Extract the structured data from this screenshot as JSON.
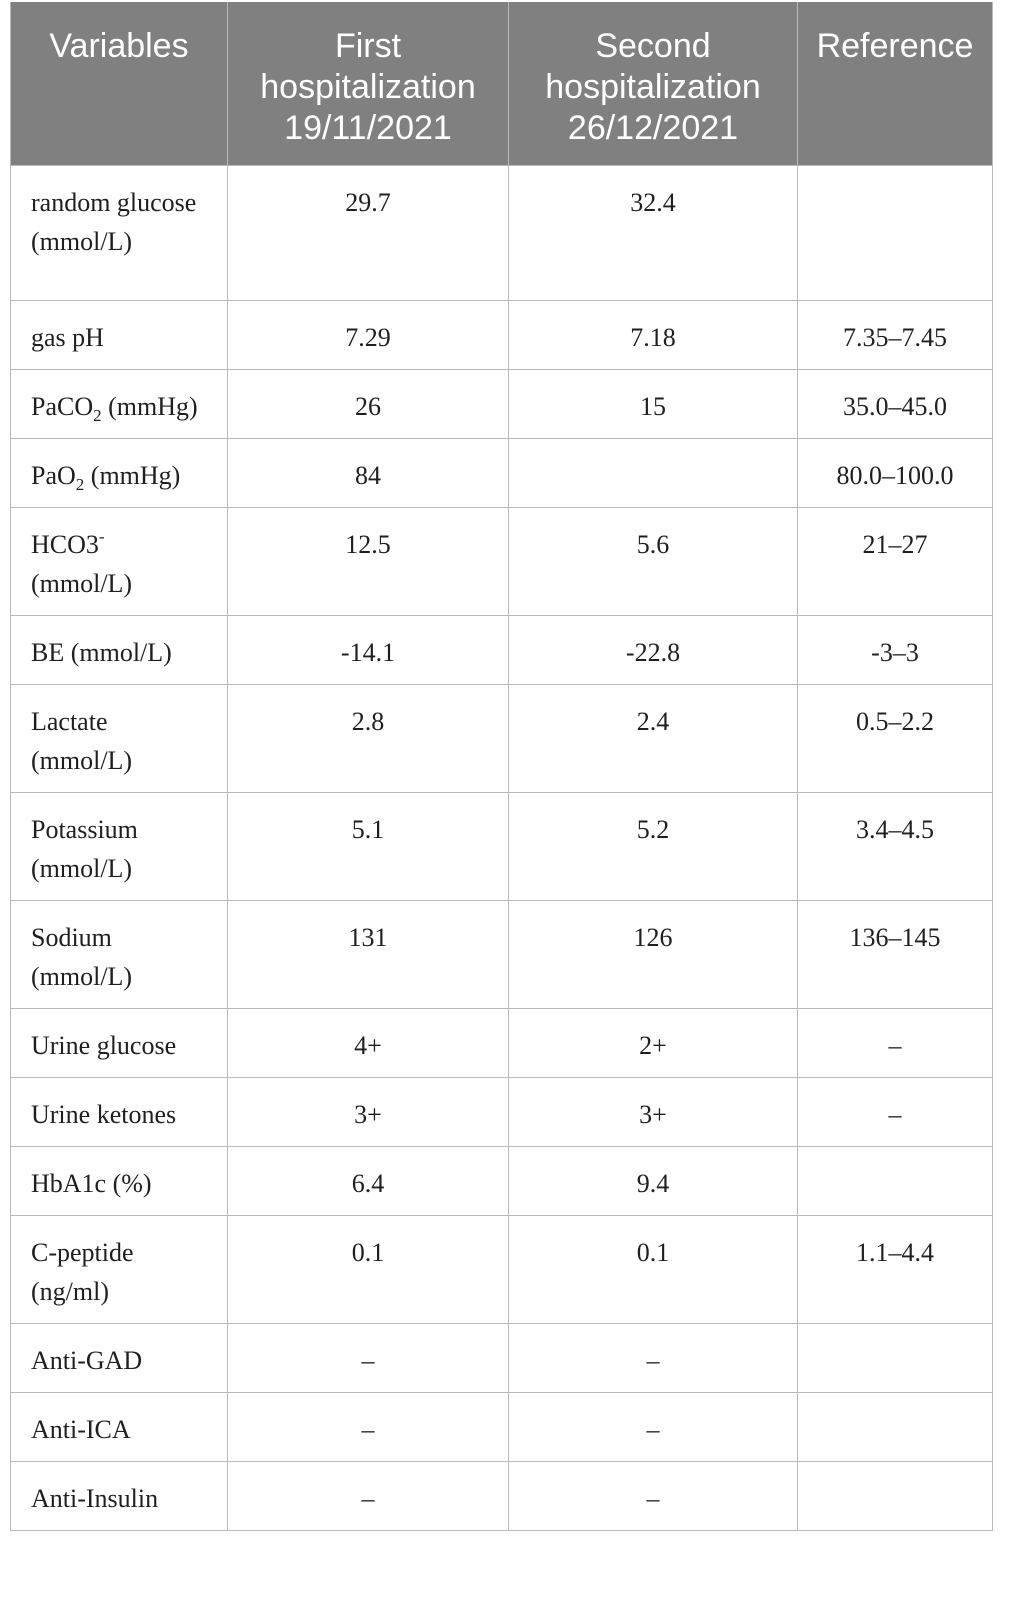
{
  "table": {
    "headers": {
      "variables": "Variables",
      "first": [
        "First",
        "hospitalization",
        "19/11/2021"
      ],
      "second": [
        "Second",
        "hospitalization",
        "26/12/2021"
      ],
      "reference": "Reference"
    },
    "rows": [
      {
        "variable": "random glucose (mmol/L)",
        "first": "29.7",
        "second": "32.4",
        "reference": ""
      },
      {
        "variable": "gas pH",
        "first": "7.29",
        "second": "7.18",
        "reference": "7.35–7.45"
      },
      {
        "variable_parts": [
          "PaCO",
          "2",
          " (mmHg)"
        ],
        "first": "26",
        "second": "15",
        "reference": "35.0–45.0"
      },
      {
        "variable_parts": [
          "PaO",
          "2",
          " (mmHg)"
        ],
        "first": "84",
        "second": "",
        "reference": "80.0–100.0"
      },
      {
        "variable_parts": [
          "HCO3",
          "-",
          " (mmol/L)"
        ],
        "first": "12.5",
        "second": "5.6",
        "reference": "21–27"
      },
      {
        "variable": "BE (mmol/L)",
        "first": "-14.1",
        "second": "-22.8",
        "reference": "-3–3"
      },
      {
        "variable": "Lactate (mmol/L)",
        "first": "2.8",
        "second": "2.4",
        "reference": "0.5–2.2"
      },
      {
        "variable": "Potassium (mmol/L)",
        "first": "5.1",
        "second": "5.2",
        "reference": "3.4–4.5"
      },
      {
        "variable": "Sodium (mmol/L)",
        "first": "131",
        "second": "126",
        "reference": "136–145"
      },
      {
        "variable": "Urine glucose",
        "first": "4+",
        "second": "2+",
        "reference": "–"
      },
      {
        "variable": "Urine ketones",
        "first": "3+",
        "second": "3+",
        "reference": "–"
      },
      {
        "variable": "HbA1c (%)",
        "first": "6.4",
        "second": "9.4",
        "reference": ""
      },
      {
        "variable": "C-peptide (ng/ml)",
        "first": "0.1",
        "second": "0.1",
        "reference": "1.1–4.4"
      },
      {
        "variable": "Anti-GAD",
        "first": "–",
        "second": "–",
        "reference": ""
      },
      {
        "variable": "Anti-ICA",
        "first": "–",
        "second": "–",
        "reference": ""
      },
      {
        "variable": "Anti-Insulin",
        "first": "–",
        "second": "–",
        "reference": ""
      }
    ]
  }
}
